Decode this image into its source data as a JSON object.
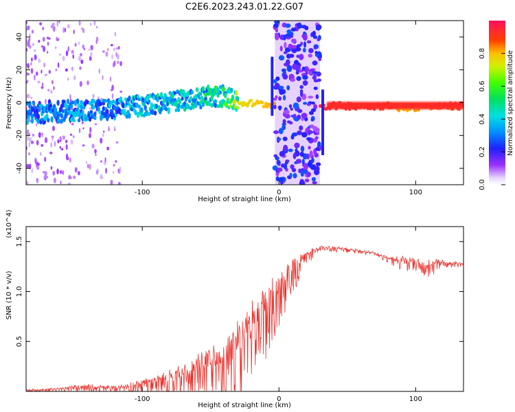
{
  "title": "C2E6.2023.243.01.22.G07",
  "chart_data": [
    {
      "type": "heatmap",
      "xlabel": "Height of straight line (km)",
      "ylabel": "Frequency (Hz)",
      "xlim": [
        -185,
        135
      ],
      "ylim": [
        -50,
        50
      ],
      "xticks": [
        -100,
        0,
        100
      ],
      "yticks": [
        -40,
        -20,
        0,
        20,
        40
      ],
      "colorbar": {
        "label": "Normalized spectral amplitude",
        "range": [
          0,
          1
        ],
        "ticks": [
          "0.0",
          "0.2",
          "0.4",
          "0.6",
          "0.8"
        ]
      },
      "ridge": [
        {
          "x": -180,
          "freq": -6,
          "amp": 0.35
        },
        {
          "x": -150,
          "freq": -5,
          "amp": 0.4
        },
        {
          "x": -120,
          "freq": -4,
          "amp": 0.4
        },
        {
          "x": -90,
          "freq": -1,
          "amp": 0.45
        },
        {
          "x": -60,
          "freq": 3,
          "amp": 0.5
        },
        {
          "x": -40,
          "freq": 4,
          "amp": 0.55
        },
        {
          "x": -30,
          "freq": 0,
          "amp": 0.75
        },
        {
          "x": -10,
          "freq": -1,
          "amp": 0.8
        },
        {
          "x": 35,
          "freq": -2,
          "amp": 0.95
        },
        {
          "x": 80,
          "freq": -2,
          "amp": 0.9
        },
        {
          "x": 90,
          "freq": -3,
          "amp": 0.8
        },
        {
          "x": 135,
          "freq": -2,
          "amp": 0.9
        }
      ],
      "noise_band_x": [
        -3,
        30
      ]
    },
    {
      "type": "line",
      "xlabel": "Height of straight line (km)",
      "ylabel": "SNR (10 * v/v)",
      "y_multiplier": "(x10^4)",
      "xlim": [
        -185,
        135
      ],
      "ylim": [
        0,
        1.65
      ],
      "xticks": [
        -100,
        0,
        100
      ],
      "yticks": [
        0.5,
        1.0,
        1.5
      ],
      "series": [
        {
          "color": "#e8302a",
          "envelope_x": [
            -185,
            -160,
            -140,
            -120,
            -100,
            -80,
            -60,
            -40,
            -25,
            -10,
            0,
            10,
            20,
            30,
            40,
            60,
            70,
            80,
            90,
            100,
            110,
            120,
            135
          ],
          "envelope_y": [
            0.02,
            0.04,
            0.08,
            0.06,
            0.12,
            0.22,
            0.38,
            0.55,
            0.8,
            1.1,
            1.2,
            1.35,
            1.42,
            1.46,
            1.46,
            1.42,
            1.4,
            1.35,
            1.36,
            1.33,
            1.33,
            1.32,
            1.29
          ],
          "noise_amp": [
            0.02,
            0.03,
            0.05,
            0.06,
            0.1,
            0.18,
            0.3,
            0.45,
            0.55,
            0.5,
            0.35,
            0.25,
            0.1,
            0.04,
            0.04,
            0.03,
            0.03,
            0.04,
            0.1,
            0.08,
            0.12,
            0.05,
            0.03
          ]
        }
      ]
    }
  ]
}
